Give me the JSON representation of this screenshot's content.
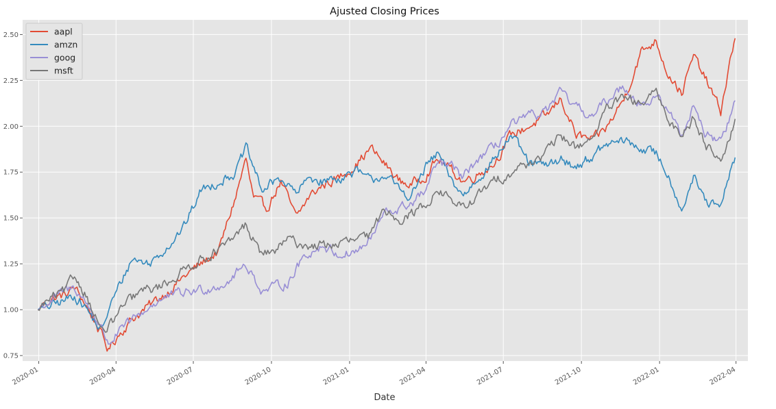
{
  "chart_data": {
    "type": "line",
    "title": "Ajusted Closing Prices",
    "xlabel": "Date",
    "ylabel": "",
    "xlim": [
      "2019-12-13",
      "2022-04-15"
    ],
    "ylim": [
      0.72,
      2.58
    ],
    "grid": true,
    "legend_position": "top-left",
    "x_ticks": [
      "2020-01",
      "2020-04",
      "2020-07",
      "2020-10",
      "2021-01",
      "2021-04",
      "2021-07",
      "2021-10",
      "2022-01",
      "2022-04"
    ],
    "y_ticks": [
      "0.75",
      "1.00",
      "1.25",
      "1.50",
      "1.75",
      "2.00",
      "2.25",
      "2.50"
    ],
    "y_tick_values": [
      0.75,
      1.0,
      1.25,
      1.5,
      1.75,
      2.0,
      2.25,
      2.5
    ],
    "series": [
      {
        "name": "aapl",
        "color": "#E24A33",
        "points": [
          [
            "2019-12-31",
            1.0
          ],
          [
            "2020-01-15",
            1.06
          ],
          [
            "2020-02-01",
            1.08
          ],
          [
            "2020-02-12",
            1.12
          ],
          [
            "2020-02-24",
            1.04
          ],
          [
            "2020-03-09",
            0.92
          ],
          [
            "2020-03-23",
            0.78
          ],
          [
            "2020-04-03",
            0.86
          ],
          [
            "2020-04-20",
            0.95
          ],
          [
            "2020-05-10",
            1.02
          ],
          [
            "2020-06-01",
            1.1
          ],
          [
            "2020-06-20",
            1.18
          ],
          [
            "2020-07-10",
            1.25
          ],
          [
            "2020-07-31",
            1.32
          ],
          [
            "2020-08-20",
            1.62
          ],
          [
            "2020-09-01",
            1.82
          ],
          [
            "2020-09-10",
            1.6
          ],
          [
            "2020-09-25",
            1.55
          ],
          [
            "2020-10-12",
            1.7
          ],
          [
            "2020-10-30",
            1.5
          ],
          [
            "2020-11-15",
            1.62
          ],
          [
            "2020-12-01",
            1.68
          ],
          [
            "2020-12-20",
            1.72
          ],
          [
            "2021-01-10",
            1.8
          ],
          [
            "2021-01-26",
            1.88
          ],
          [
            "2021-02-10",
            1.8
          ],
          [
            "2021-03-01",
            1.7
          ],
          [
            "2021-03-15",
            1.68
          ],
          [
            "2021-04-01",
            1.74
          ],
          [
            "2021-04-15",
            1.82
          ],
          [
            "2021-05-01",
            1.76
          ],
          [
            "2021-05-15",
            1.7
          ],
          [
            "2021-06-01",
            1.74
          ],
          [
            "2021-06-20",
            1.8
          ],
          [
            "2021-07-10",
            1.95
          ],
          [
            "2021-07-31",
            2.0
          ],
          [
            "2021-08-20",
            2.05
          ],
          [
            "2021-09-07",
            2.15
          ],
          [
            "2021-09-25",
            1.95
          ],
          [
            "2021-10-15",
            1.92
          ],
          [
            "2021-11-01",
            2.0
          ],
          [
            "2021-11-20",
            2.15
          ],
          [
            "2021-12-10",
            2.4
          ],
          [
            "2021-12-28",
            2.47
          ],
          [
            "2022-01-10",
            2.3
          ],
          [
            "2022-01-27",
            2.18
          ],
          [
            "2022-02-10",
            2.38
          ],
          [
            "2022-02-25",
            2.25
          ],
          [
            "2022-03-14",
            2.08
          ],
          [
            "2022-03-25",
            2.35
          ],
          [
            "2022-03-31",
            2.48
          ]
        ]
      },
      {
        "name": "amzn",
        "color": "#348ABD",
        "points": [
          [
            "2019-12-31",
            1.0
          ],
          [
            "2020-01-15",
            1.02
          ],
          [
            "2020-02-01",
            1.05
          ],
          [
            "2020-02-12",
            1.08
          ],
          [
            "2020-02-24",
            1.02
          ],
          [
            "2020-03-09",
            0.92
          ],
          [
            "2020-03-16",
            0.88
          ],
          [
            "2020-03-23",
            1.0
          ],
          [
            "2020-04-10",
            1.18
          ],
          [
            "2020-04-20",
            1.28
          ],
          [
            "2020-05-10",
            1.25
          ],
          [
            "2020-06-01",
            1.35
          ],
          [
            "2020-06-20",
            1.45
          ],
          [
            "2020-07-10",
            1.65
          ],
          [
            "2020-07-31",
            1.7
          ],
          [
            "2020-08-20",
            1.75
          ],
          [
            "2020-09-01",
            1.88
          ],
          [
            "2020-09-20",
            1.65
          ],
          [
            "2020-10-12",
            1.72
          ],
          [
            "2020-10-30",
            1.63
          ],
          [
            "2020-11-15",
            1.72
          ],
          [
            "2020-12-01",
            1.7
          ],
          [
            "2020-12-20",
            1.72
          ],
          [
            "2021-01-10",
            1.75
          ],
          [
            "2021-01-26",
            1.7
          ],
          [
            "2021-02-10",
            1.74
          ],
          [
            "2021-03-01",
            1.65
          ],
          [
            "2021-03-15",
            1.62
          ],
          [
            "2021-04-01",
            1.78
          ],
          [
            "2021-04-15",
            1.85
          ],
          [
            "2021-05-01",
            1.7
          ],
          [
            "2021-05-15",
            1.62
          ],
          [
            "2021-06-01",
            1.72
          ],
          [
            "2021-06-20",
            1.82
          ],
          [
            "2021-07-10",
            1.95
          ],
          [
            "2021-07-31",
            1.8
          ],
          [
            "2021-08-20",
            1.78
          ],
          [
            "2021-09-07",
            1.82
          ],
          [
            "2021-09-25",
            1.78
          ],
          [
            "2021-10-15",
            1.84
          ],
          [
            "2021-11-01",
            1.9
          ],
          [
            "2021-11-20",
            1.92
          ],
          [
            "2021-12-10",
            1.88
          ],
          [
            "2021-12-28",
            1.85
          ],
          [
            "2022-01-10",
            1.75
          ],
          [
            "2022-01-27",
            1.55
          ],
          [
            "2022-02-10",
            1.72
          ],
          [
            "2022-02-25",
            1.58
          ],
          [
            "2022-03-14",
            1.55
          ],
          [
            "2022-03-25",
            1.75
          ],
          [
            "2022-03-31",
            1.83
          ]
        ]
      },
      {
        "name": "goog",
        "color": "#988ED5",
        "points": [
          [
            "2019-12-31",
            1.0
          ],
          [
            "2020-01-15",
            1.05
          ],
          [
            "2020-02-01",
            1.1
          ],
          [
            "2020-02-12",
            1.12
          ],
          [
            "2020-02-24",
            1.05
          ],
          [
            "2020-03-09",
            0.95
          ],
          [
            "2020-03-23",
            0.82
          ],
          [
            "2020-04-10",
            0.9
          ],
          [
            "2020-05-01",
            0.98
          ],
          [
            "2020-05-20",
            1.05
          ],
          [
            "2020-06-10",
            1.08
          ],
          [
            "2020-06-30",
            1.1
          ],
          [
            "2020-07-20",
            1.12
          ],
          [
            "2020-08-10",
            1.15
          ],
          [
            "2020-09-01",
            1.25
          ],
          [
            "2020-09-20",
            1.1
          ],
          [
            "2020-10-05",
            1.12
          ],
          [
            "2020-10-20",
            1.15
          ],
          [
            "2020-11-10",
            1.3
          ],
          [
            "2020-11-30",
            1.35
          ],
          [
            "2020-12-20",
            1.3
          ],
          [
            "2021-01-10",
            1.32
          ],
          [
            "2021-01-26",
            1.38
          ],
          [
            "2021-02-10",
            1.52
          ],
          [
            "2021-03-01",
            1.55
          ],
          [
            "2021-03-15",
            1.58
          ],
          [
            "2021-04-01",
            1.65
          ],
          [
            "2021-04-15",
            1.8
          ],
          [
            "2021-05-01",
            1.78
          ],
          [
            "2021-05-15",
            1.72
          ],
          [
            "2021-06-01",
            1.82
          ],
          [
            "2021-06-20",
            1.88
          ],
          [
            "2021-07-10",
            2.0
          ],
          [
            "2021-07-31",
            2.05
          ],
          [
            "2021-08-20",
            2.08
          ],
          [
            "2021-09-07",
            2.18
          ],
          [
            "2021-09-25",
            2.1
          ],
          [
            "2021-10-15",
            2.05
          ],
          [
            "2021-11-01",
            2.15
          ],
          [
            "2021-11-20",
            2.22
          ],
          [
            "2021-12-10",
            2.12
          ],
          [
            "2021-12-28",
            2.15
          ],
          [
            "2022-01-10",
            2.1
          ],
          [
            "2022-01-27",
            1.95
          ],
          [
            "2022-02-10",
            2.12
          ],
          [
            "2022-02-25",
            1.95
          ],
          [
            "2022-03-14",
            1.92
          ],
          [
            "2022-03-25",
            2.05
          ],
          [
            "2022-03-31",
            2.14
          ]
        ]
      },
      {
        "name": "msft",
        "color": "#777777",
        "points": [
          [
            "2019-12-31",
            1.0
          ],
          [
            "2020-01-15",
            1.06
          ],
          [
            "2020-02-01",
            1.1
          ],
          [
            "2020-02-12",
            1.18
          ],
          [
            "2020-02-24",
            1.1
          ],
          [
            "2020-03-09",
            0.95
          ],
          [
            "2020-03-16",
            0.88
          ],
          [
            "2020-03-23",
            0.9
          ],
          [
            "2020-04-10",
            1.02
          ],
          [
            "2020-05-01",
            1.1
          ],
          [
            "2020-05-20",
            1.12
          ],
          [
            "2020-06-10",
            1.18
          ],
          [
            "2020-06-30",
            1.25
          ],
          [
            "2020-07-20",
            1.3
          ],
          [
            "2020-08-10",
            1.35
          ],
          [
            "2020-08-31",
            1.46
          ],
          [
            "2020-09-20",
            1.3
          ],
          [
            "2020-10-05",
            1.32
          ],
          [
            "2020-10-20",
            1.38
          ],
          [
            "2020-11-10",
            1.35
          ],
          [
            "2020-11-30",
            1.35
          ],
          [
            "2020-12-20",
            1.36
          ],
          [
            "2021-01-10",
            1.38
          ],
          [
            "2021-01-26",
            1.4
          ],
          [
            "2021-02-10",
            1.55
          ],
          [
            "2021-03-01",
            1.5
          ],
          [
            "2021-03-15",
            1.52
          ],
          [
            "2021-04-01",
            1.58
          ],
          [
            "2021-04-15",
            1.65
          ],
          [
            "2021-05-01",
            1.6
          ],
          [
            "2021-05-15",
            1.55
          ],
          [
            "2021-06-01",
            1.62
          ],
          [
            "2021-06-20",
            1.7
          ],
          [
            "2021-07-10",
            1.75
          ],
          [
            "2021-07-31",
            1.8
          ],
          [
            "2021-08-20",
            1.85
          ],
          [
            "2021-09-07",
            1.95
          ],
          [
            "2021-09-25",
            1.88
          ],
          [
            "2021-10-15",
            1.95
          ],
          [
            "2021-11-01",
            2.1
          ],
          [
            "2021-11-20",
            2.15
          ],
          [
            "2021-12-10",
            2.12
          ],
          [
            "2021-12-28",
            2.18
          ],
          [
            "2022-01-10",
            2.05
          ],
          [
            "2022-01-27",
            1.95
          ],
          [
            "2022-02-10",
            2.05
          ],
          [
            "2022-02-25",
            1.9
          ],
          [
            "2022-03-14",
            1.82
          ],
          [
            "2022-03-25",
            1.95
          ],
          [
            "2022-03-31",
            2.04
          ]
        ]
      }
    ]
  }
}
